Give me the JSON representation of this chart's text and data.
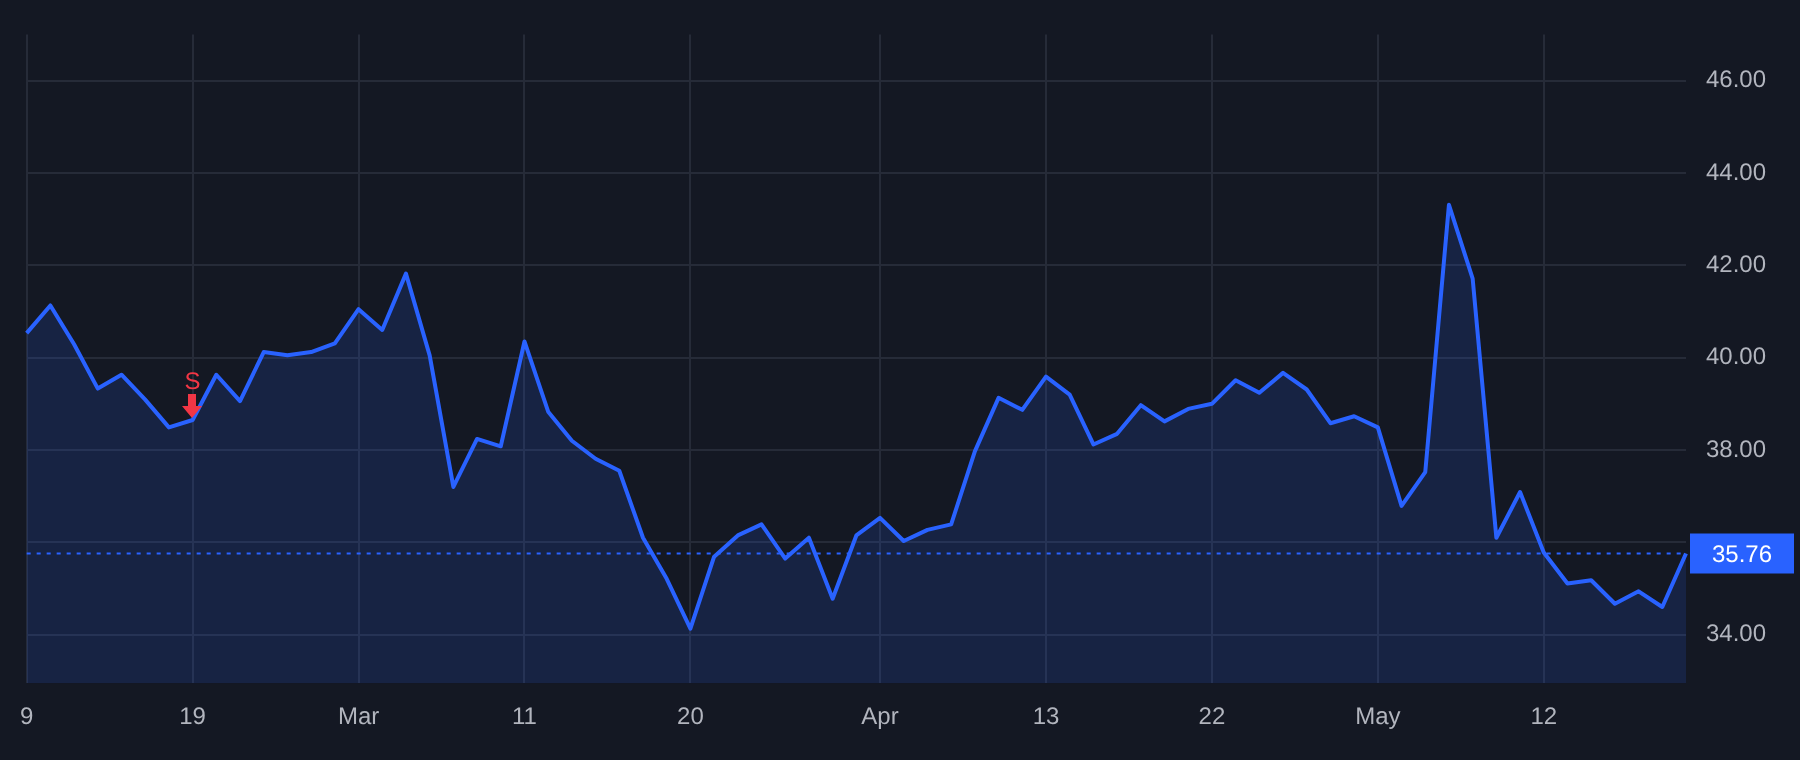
{
  "chart_data": {
    "type": "area",
    "categories": [
      "9",
      null,
      null,
      null,
      null,
      null,
      null,
      "19",
      null,
      null,
      null,
      null,
      null,
      null,
      "Mar",
      null,
      null,
      null,
      null,
      null,
      null,
      "11",
      null,
      null,
      null,
      null,
      null,
      null,
      "20",
      null,
      null,
      null,
      null,
      null,
      null,
      null,
      "Apr",
      null,
      null,
      null,
      null,
      null,
      null,
      "13",
      null,
      null,
      null,
      null,
      null,
      null,
      "22",
      null,
      null,
      null,
      null,
      null,
      null,
      "May",
      null,
      null,
      null,
      null,
      null,
      null,
      "12",
      null,
      null,
      null,
      null,
      null,
      null
    ],
    "series": [
      {
        "color": "#2962ff",
        "values": [
          40.53,
          41.13,
          40.29,
          39.33,
          39.63,
          39.09,
          38.49,
          38.65,
          39.63,
          39.06,
          40.12,
          40.05,
          40.12,
          40.31,
          41.05,
          40.6,
          41.82,
          40.05,
          37.2,
          38.24,
          38.08,
          40.35,
          38.83,
          38.2,
          37.81,
          37.55,
          36.1,
          35.21,
          34.13,
          35.69,
          36.15,
          36.39,
          35.65,
          36.1,
          34.78,
          36.15,
          36.53,
          36.03,
          36.27,
          36.39,
          37.97,
          39.13,
          38.87,
          39.59,
          39.2,
          38.12,
          38.35,
          38.97,
          38.62,
          38.89,
          39.0,
          39.51,
          39.24,
          39.67,
          39.31,
          38.58,
          38.73,
          38.49,
          36.79,
          37.52,
          43.31,
          41.71,
          36.1,
          37.09,
          35.78,
          35.11,
          35.18,
          34.67,
          34.94,
          34.6,
          35.76
        ]
      }
    ],
    "ylim": [
      32.95,
      47.0
    ],
    "yticks": [
      {
        "value": 34,
        "label": "34.00"
      },
      {
        "value": 36,
        "label": null
      },
      {
        "value": 38,
        "label": "38.00"
      },
      {
        "value": 40,
        "label": "40.00"
      },
      {
        "value": 42,
        "label": "42.00"
      },
      {
        "value": 44,
        "label": "44.00"
      },
      {
        "value": 46,
        "label": "46.00"
      }
    ],
    "ref_lines": [
      {
        "axis": "y",
        "value": 35.76,
        "label": "35.76",
        "color": "#2962ff",
        "line_style": "dotted"
      }
    ],
    "annotations": [
      {
        "text": "S",
        "x": "19",
        "y": 38.65
      }
    ],
    "grid": true,
    "legend": false,
    "marker": "none",
    "line_style": "solid"
  }
}
